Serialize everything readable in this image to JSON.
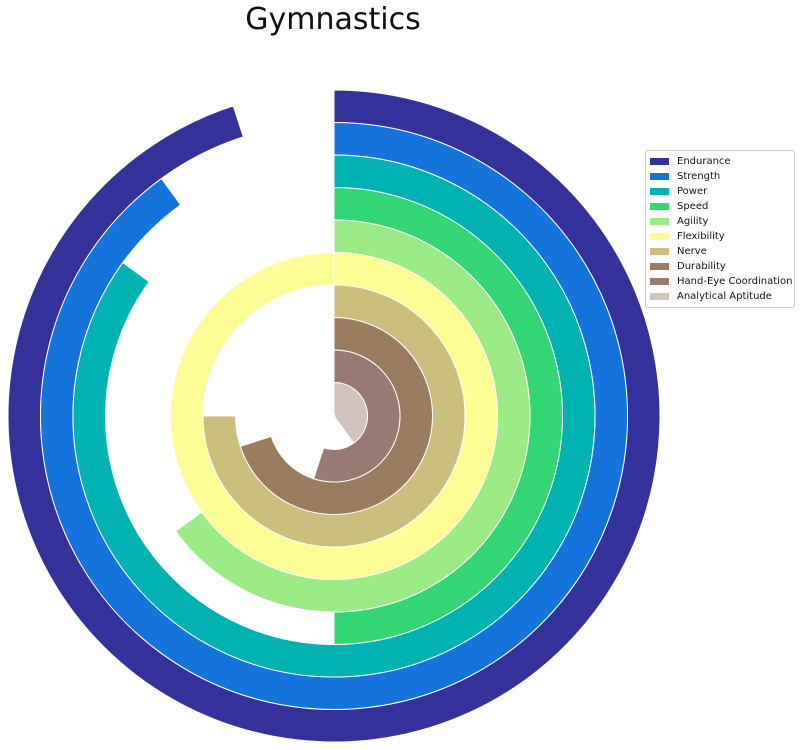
{
  "chart_data": {
    "type": "radial_bar",
    "title": "Gymnastics",
    "max_value": 100,
    "series": [
      {
        "name": "Endurance",
        "value": 95,
        "color": "#35319b"
      },
      {
        "name": "Strength",
        "value": 90,
        "color": "#1574db"
      },
      {
        "name": "Power",
        "value": 85,
        "color": "#00b2b2"
      },
      {
        "name": "Speed",
        "value": 50,
        "color": "#33d674"
      },
      {
        "name": "Agility",
        "value": 65,
        "color": "#9aeb85"
      },
      {
        "name": "Flexibility",
        "value": 100,
        "color": "#fdfd96"
      },
      {
        "name": "Nerve",
        "value": 75,
        "color": "#ccbe7c"
      },
      {
        "name": "Durability",
        "value": 70,
        "color": "#9b7c5f"
      },
      {
        "name": "Hand-Eye Coordination",
        "value": 55,
        "color": "#9a7b73"
      },
      {
        "name": "Analytical Aptitude",
        "value": 40,
        "color": "#d0c2bd"
      }
    ],
    "legend_position": "right"
  }
}
